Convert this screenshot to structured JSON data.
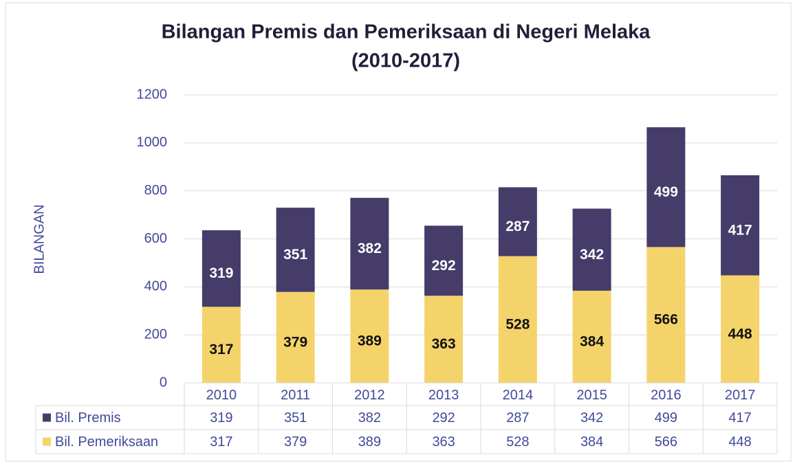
{
  "chart_data": {
    "type": "stacked_bar",
    "title": "Bilangan Premis dan Pemeriksaan di Negeri Melaka",
    "subtitle": "(2010-2017)",
    "y_label": "BILANGAN",
    "categories": [
      "2010",
      "2011",
      "2012",
      "2013",
      "2014",
      "2015",
      "2016",
      "2017"
    ],
    "series": [
      {
        "name": "Bil. Premis",
        "color": "#463c6a",
        "values": [
          319,
          351,
          382,
          292,
          287,
          342,
          499,
          417
        ]
      },
      {
        "name": "Bil. Pemeriksaan",
        "color": "#f5d36b",
        "values": [
          317,
          379,
          389,
          363,
          528,
          384,
          566,
          448
        ]
      }
    ],
    "ylim": [
      0,
      1200
    ],
    "yticks": [
      0,
      200,
      400,
      600,
      800,
      1000,
      1200
    ],
    "grid": true,
    "data_table": true
  }
}
